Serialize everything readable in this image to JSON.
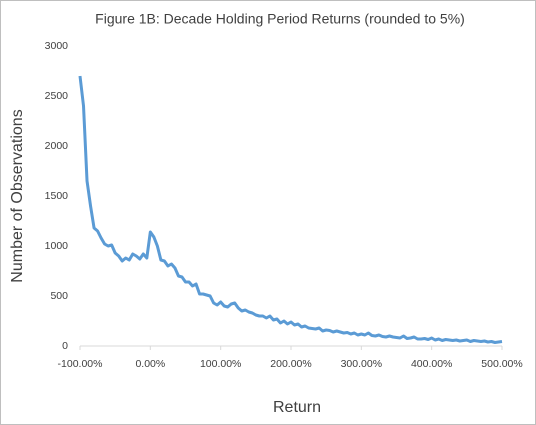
{
  "chart_data": {
    "type": "line",
    "title": "Figure 1B: Decade Holding Period Returns (rounded to 5%)",
    "x_label": "Return",
    "y_label": "Number of Observations",
    "x": [
      -100,
      -95,
      -90,
      -85,
      -80,
      -75,
      -70,
      -65,
      -60,
      -55,
      -50,
      -45,
      -40,
      -35,
      -30,
      -25,
      -20,
      -15,
      -10,
      -5,
      0,
      5,
      10,
      15,
      20,
      25,
      30,
      35,
      40,
      45,
      50,
      55,
      60,
      65,
      70,
      75,
      80,
      85,
      90,
      95,
      100,
      105,
      110,
      115,
      120,
      125,
      130,
      135,
      140,
      145,
      150,
      155,
      160,
      165,
      170,
      175,
      180,
      185,
      190,
      195,
      200,
      205,
      210,
      215,
      220,
      225,
      230,
      235,
      240,
      245,
      250,
      255,
      260,
      265,
      270,
      275,
      280,
      285,
      290,
      295,
      300,
      305,
      310,
      315,
      320,
      325,
      330,
      335,
      340,
      345,
      350,
      355,
      360,
      365,
      370,
      375,
      380,
      385,
      390,
      395,
      400,
      405,
      410,
      415,
      420,
      425,
      430,
      435,
      440,
      445,
      450,
      455,
      460,
      465,
      470,
      475,
      480,
      485,
      490,
      495,
      500
    ],
    "series": [
      {
        "name": "Observations",
        "color": "#5b9bd5",
        "values": [
          2700,
          2400,
          1650,
          1400,
          1180,
          1150,
          1080,
          1020,
          1000,
          1010,
          930,
          900,
          850,
          880,
          860,
          920,
          900,
          870,
          920,
          880,
          1140,
          1090,
          1000,
          860,
          850,
          800,
          820,
          780,
          700,
          690,
          640,
          640,
          600,
          620,
          520,
          520,
          510,
          500,
          430,
          410,
          440,
          400,
          390,
          420,
          430,
          380,
          350,
          360,
          340,
          330,
          310,
          300,
          300,
          280,
          300,
          260,
          270,
          230,
          250,
          220,
          240,
          210,
          220,
          190,
          200,
          180,
          175,
          170,
          180,
          150,
          160,
          155,
          140,
          150,
          140,
          130,
          135,
          120,
          130,
          110,
          120,
          110,
          130,
          105,
          100,
          110,
          95,
          90,
          100,
          90,
          85,
          80,
          100,
          75,
          80,
          90,
          70,
          70,
          75,
          65,
          80,
          60,
          70,
          55,
          65,
          60,
          55,
          60,
          50,
          55,
          60,
          45,
          55,
          50,
          45,
          50,
          40,
          45,
          35,
          40,
          45
        ]
      }
    ],
    "xlim": [
      -100,
      500
    ],
    "xticks": [
      {
        "value": -100,
        "label": "-100.00%"
      },
      {
        "value": 0,
        "label": "0.00%"
      },
      {
        "value": 100,
        "label": "100.00%"
      },
      {
        "value": 200,
        "label": "200.00%"
      },
      {
        "value": 300,
        "label": "300.00%"
      },
      {
        "value": 400,
        "label": "400.00%"
      },
      {
        "value": 500,
        "label": "500.00%"
      }
    ],
    "ylim": [
      0,
      3000
    ],
    "yticks": [
      0,
      500,
      1000,
      1500,
      2000,
      2500,
      3000
    ],
    "grid": false
  }
}
